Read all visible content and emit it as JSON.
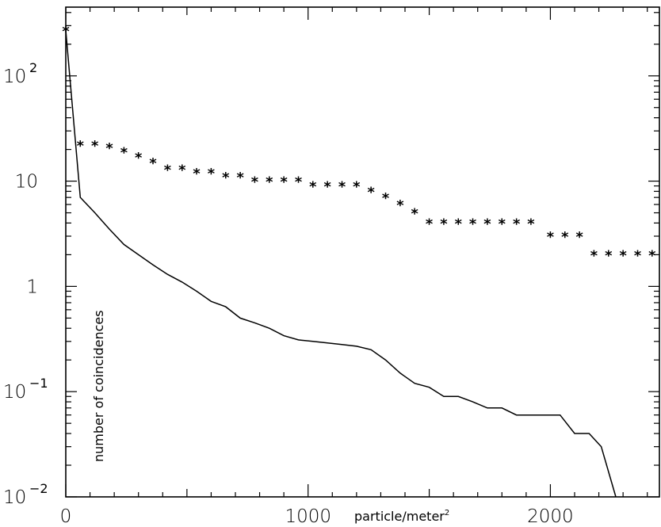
{
  "chart_data": {
    "type": "scatter",
    "xlabel": "particle/meter",
    "xlabel_sup": "2",
    "ylabel": "number of coincidences",
    "xlim": [
      0,
      2450
    ],
    "ylim": [
      0.01,
      450
    ],
    "yscale": "log",
    "grid": false,
    "x_ticks": [
      {
        "value": 0,
        "label": "0"
      },
      {
        "value": 1000,
        "label": "1000"
      },
      {
        "value": 2000,
        "label": "2000"
      }
    ],
    "y_ticks": [
      {
        "value": 0.01,
        "base": "10",
        "exp": "−2",
        "label": ""
      },
      {
        "value": 0.1,
        "base": "10",
        "exp": "−1",
        "label": ""
      },
      {
        "value": 1,
        "base": "",
        "exp": "",
        "label": "1"
      },
      {
        "value": 10,
        "base": "",
        "exp": "",
        "label": "10"
      },
      {
        "value": 100,
        "base": "10",
        "exp": "2",
        "label": ""
      }
    ],
    "series": [
      {
        "style": "markers",
        "marker": "*",
        "x": [
          0,
          60,
          120,
          180,
          240,
          300,
          360,
          420,
          480,
          540,
          600,
          660,
          720,
          780,
          840,
          900,
          960,
          1020,
          1080,
          1140,
          1200,
          1260,
          1320,
          1380,
          1440,
          1500,
          1560,
          1620,
          1680,
          1740,
          1800,
          1860,
          1920,
          2000,
          2060,
          2120,
          2180,
          2240,
          2300,
          2360,
          2420
        ],
        "y": [
          270,
          22,
          22,
          21,
          19,
          17,
          15,
          13,
          13,
          12,
          12,
          11,
          11,
          10,
          10,
          10,
          10,
          9,
          9,
          9,
          9,
          8,
          7,
          6,
          5,
          4,
          4,
          4,
          4,
          4,
          4,
          4,
          4,
          3,
          3,
          3,
          2,
          2,
          2,
          2,
          2
        ]
      },
      {
        "style": "line",
        "x": [
          0,
          60,
          120,
          180,
          240,
          300,
          360,
          420,
          480,
          540,
          600,
          660,
          720,
          780,
          840,
          900,
          960,
          1020,
          1080,
          1140,
          1200,
          1260,
          1320,
          1380,
          1440,
          1500,
          1560,
          1620,
          1680,
          1740,
          1800,
          1860,
          1920,
          1980,
          2040,
          2100,
          2160,
          2210,
          2270
        ],
        "y": [
          270,
          7,
          5,
          3.5,
          2.5,
          2,
          1.6,
          1.3,
          1.1,
          0.9,
          0.72,
          0.64,
          0.5,
          0.45,
          0.4,
          0.34,
          0.31,
          0.3,
          0.29,
          0.28,
          0.27,
          0.25,
          0.2,
          0.15,
          0.12,
          0.11,
          0.09,
          0.09,
          0.08,
          0.07,
          0.07,
          0.06,
          0.06,
          0.06,
          0.06,
          0.04,
          0.04,
          0.03,
          0.01
        ]
      }
    ]
  }
}
